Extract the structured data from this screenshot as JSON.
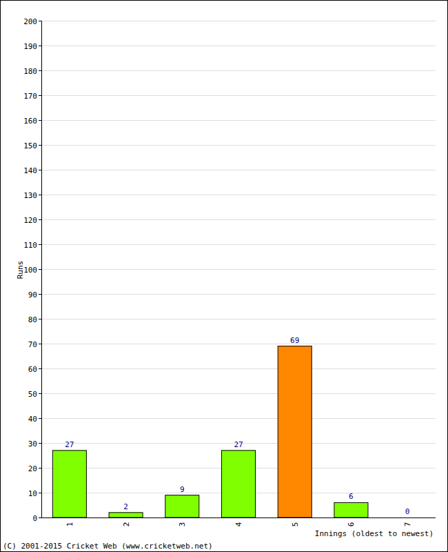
{
  "chart_data": {
    "type": "bar",
    "categories": [
      "1",
      "2",
      "3",
      "4",
      "5",
      "6",
      "7"
    ],
    "values": [
      27,
      2,
      9,
      27,
      69,
      6,
      0
    ],
    "colors": [
      "#80ff00",
      "#80ff00",
      "#80ff00",
      "#80ff00",
      "#ff8800",
      "#80ff00",
      "#80ff00"
    ],
    "ylim": [
      0,
      200
    ],
    "yticks": [
      0,
      10,
      20,
      30,
      40,
      50,
      60,
      70,
      80,
      90,
      100,
      110,
      120,
      130,
      140,
      150,
      160,
      170,
      180,
      190,
      200
    ],
    "grid": true,
    "data_labels": true,
    "x_label": "Innings (oldest to newest)",
    "y_label": "Runs",
    "source": "(C) 2001-2015 Cricket Web (www.cricketweb.net)"
  }
}
